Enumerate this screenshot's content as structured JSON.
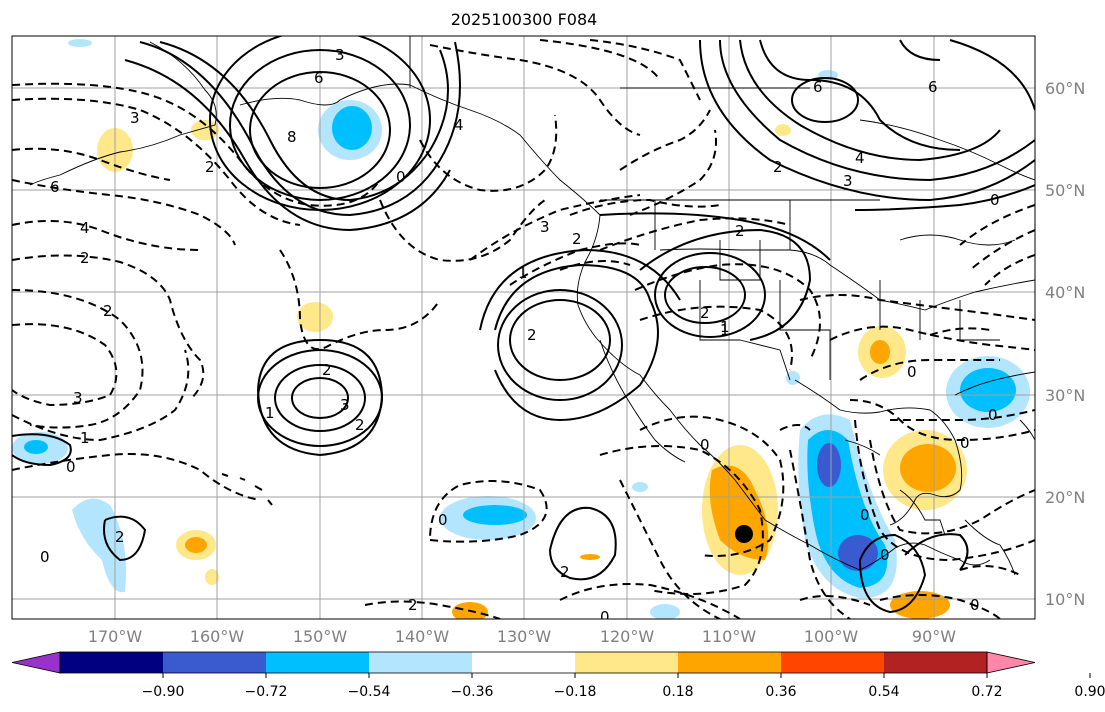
{
  "title": "2025100300 F084",
  "lon_ticks": [
    "170°W",
    "160°W",
    "150°W",
    "140°W",
    "130°W",
    "120°W",
    "110°W",
    "100°W",
    "90°W"
  ],
  "lat_ticks": [
    "60°N",
    "50°N",
    "40°N",
    "30°N",
    "20°N",
    "10°N"
  ],
  "colorbar": {
    "colors": [
      "#9932cc",
      "#000080",
      "#3a5bd0",
      "#00bfff",
      "#b3e5ff",
      "#ffffff",
      "#ffe88a",
      "#ffa500",
      "#ff4500",
      "#b22222",
      "#ff88aa"
    ],
    "tick_labels": [
      "−0.90",
      "−0.72",
      "−0.54",
      "−0.36",
      "−0.18",
      "0.18",
      "0.36",
      "0.54",
      "0.72",
      "0.90"
    ]
  },
  "contour_labels": [
    "6",
    "8",
    "3",
    "0",
    "2",
    "1",
    "3",
    "2",
    "3",
    "2",
    "4",
    "6",
    "4",
    "6",
    "3",
    "2",
    "2",
    "2",
    "3",
    "2",
    "1",
    "2",
    "1",
    "2",
    "4",
    "2",
    "0",
    "3",
    "0",
    "2",
    "0",
    "2",
    "2",
    "1",
    "0",
    "0",
    "0",
    "1",
    "0",
    "0",
    "0",
    "0",
    "0",
    "0",
    "6"
  ],
  "marker": "storm-center-dot"
}
